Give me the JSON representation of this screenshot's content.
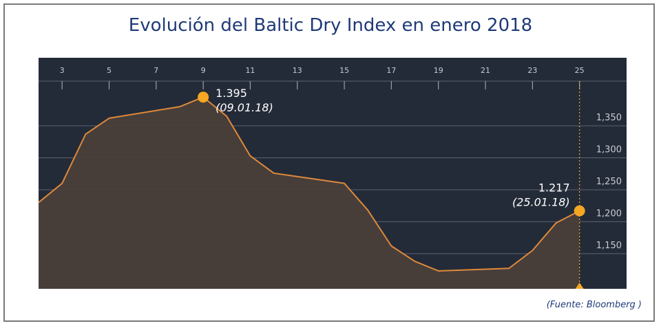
{
  "chart_data": {
    "type": "area",
    "title": "Evolución del Baltic Dry Index en enero 2018",
    "source": "(Fuente: Bloomberg )",
    "x_ticks": [
      "3",
      "5",
      "7",
      "9",
      "11",
      "13",
      "15",
      "17",
      "19",
      "21",
      "23",
      "25"
    ],
    "y_ticks": [
      "1,150",
      "1,200",
      "1,250",
      "1,300",
      "1,350"
    ],
    "x_range": [
      2,
      27
    ],
    "y_range": [
      1095,
      1420
    ],
    "points": [
      {
        "x": 2,
        "y": 1230
      },
      {
        "x": 3,
        "y": 1260
      },
      {
        "x": 4,
        "y": 1337
      },
      {
        "x": 5,
        "y": 1362
      },
      {
        "x": 8,
        "y": 1380
      },
      {
        "x": 9,
        "y": 1395
      },
      {
        "x": 10,
        "y": 1365
      },
      {
        "x": 11,
        "y": 1303
      },
      {
        "x": 12,
        "y": 1276
      },
      {
        "x": 15,
        "y": 1260
      },
      {
        "x": 16,
        "y": 1218
      },
      {
        "x": 17,
        "y": 1162
      },
      {
        "x": 18,
        "y": 1138
      },
      {
        "x": 19,
        "y": 1123
      },
      {
        "x": 22,
        "y": 1127
      },
      {
        "x": 23,
        "y": 1155
      },
      {
        "x": 24,
        "y": 1198
      },
      {
        "x": 25,
        "y": 1217
      }
    ],
    "annotations": [
      {
        "value": "1.395",
        "date": "(09.01.18)",
        "x": 9,
        "y": 1395
      },
      {
        "value": "1.217",
        "date": "(25.01.18)",
        "x": 25,
        "y": 1217
      }
    ],
    "colors": {
      "background": "#242b38",
      "line": "#e0893a",
      "fill": "#4a3f3a",
      "marker": "#f5a623",
      "grid": "#5b6270",
      "tick_text": "#c9ccd2",
      "label_text": "#ffffff",
      "title": "#1f3a78"
    },
    "grid": true
  }
}
